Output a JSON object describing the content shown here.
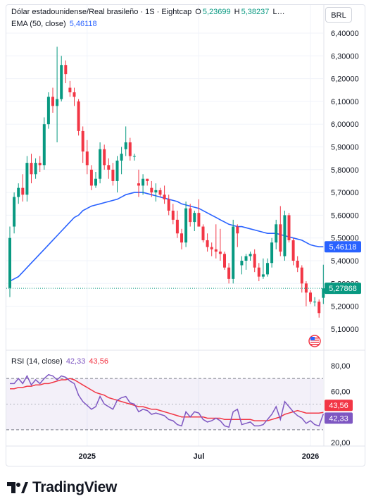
{
  "header": {
    "symbol_title": "Dólar estadounidense/Real brasileño · 1S · Eightcap",
    "open_label": "O",
    "open_value": "5,23699",
    "high_label": "H",
    "high_value": "5,38237",
    "ellipsis": "L…",
    "ema_label": "EMA (50, close)",
    "ema_value": "5,46118"
  },
  "currency_button": "BRL",
  "rsi_legend": {
    "label": "RSI (14, close)",
    "value1": "42,33",
    "value2": "43,56"
  },
  "brand": {
    "name": "TradingView"
  },
  "colors": {
    "up": "#089981",
    "down": "#f23645",
    "ema": "#2962ff",
    "rsi": "#7e57c2",
    "rsi_ma": "#f23645",
    "price_line": "#089981"
  },
  "chart_data": [
    {
      "type": "candlestick",
      "title": "Dólar estadounidense/Real brasileño · 1S · Eightcap",
      "y_ticks": [
        "5,10000",
        "5,20000",
        "5,30000",
        "5,40000",
        "5,50000",
        "5,60000",
        "5,70000",
        "5,80000",
        "5,90000",
        "6,00000",
        "6,10000",
        "6,20000",
        "6,30000",
        "6,40000"
      ],
      "ylim": [
        5.06,
        6.44
      ],
      "x_ticks": [
        {
          "label": "2025",
          "index": 18
        },
        {
          "label": "Jul",
          "index": 44
        },
        {
          "label": "2026",
          "index": 70
        }
      ],
      "last_price_label": "5,27868",
      "ema_last_label": "5,46118",
      "candles": [
        {
          "o": 5.28,
          "h": 5.55,
          "l": 5.24,
          "c": 5.5
        },
        {
          "o": 5.55,
          "h": 5.7,
          "l": 5.52,
          "c": 5.68
        },
        {
          "o": 5.68,
          "h": 5.74,
          "l": 5.65,
          "c": 5.72
        },
        {
          "o": 5.72,
          "h": 5.78,
          "l": 5.66,
          "c": 5.69
        },
        {
          "o": 5.69,
          "h": 5.86,
          "l": 5.66,
          "c": 5.83
        },
        {
          "o": 5.83,
          "h": 5.87,
          "l": 5.74,
          "c": 5.78
        },
        {
          "o": 5.78,
          "h": 5.85,
          "l": 5.76,
          "c": 5.83
        },
        {
          "o": 5.83,
          "h": 5.86,
          "l": 5.79,
          "c": 5.82
        },
        {
          "o": 5.82,
          "h": 6.03,
          "l": 5.8,
          "c": 6.0
        },
        {
          "o": 6.0,
          "h": 6.14,
          "l": 5.98,
          "c": 6.12
        },
        {
          "o": 6.12,
          "h": 6.16,
          "l": 6.05,
          "c": 6.08
        },
        {
          "o": 6.08,
          "h": 6.34,
          "l": 5.92,
          "c": 6.11
        },
        {
          "o": 6.11,
          "h": 6.3,
          "l": 6.1,
          "c": 6.26
        },
        {
          "o": 6.26,
          "h": 6.28,
          "l": 6.18,
          "c": 6.22
        },
        {
          "o": 6.16,
          "h": 6.19,
          "l": 6.12,
          "c": 6.14
        },
        {
          "o": 6.14,
          "h": 6.16,
          "l": 6.08,
          "c": 6.12
        },
        {
          "o": 6.1,
          "h": 6.11,
          "l": 5.95,
          "c": 5.97
        },
        {
          "o": 5.97,
          "h": 5.99,
          "l": 5.83,
          "c": 5.88
        },
        {
          "o": 5.88,
          "h": 5.93,
          "l": 5.78,
          "c": 5.82
        },
        {
          "o": 5.8,
          "h": 5.82,
          "l": 5.71,
          "c": 5.73
        },
        {
          "o": 5.73,
          "h": 5.79,
          "l": 5.72,
          "c": 5.76
        },
        {
          "o": 5.76,
          "h": 5.92,
          "l": 5.74,
          "c": 5.89
        },
        {
          "o": 5.89,
          "h": 5.91,
          "l": 5.8,
          "c": 5.82
        },
        {
          "o": 5.82,
          "h": 5.85,
          "l": 5.76,
          "c": 5.8
        },
        {
          "o": 5.8,
          "h": 5.83,
          "l": 5.73,
          "c": 5.75
        },
        {
          "o": 5.75,
          "h": 5.86,
          "l": 5.7,
          "c": 5.84
        },
        {
          "o": 5.84,
          "h": 5.9,
          "l": 5.78,
          "c": 5.87
        },
        {
          "o": 5.89,
          "h": 5.99,
          "l": 5.86,
          "c": 5.92
        },
        {
          "o": 5.92,
          "h": 5.94,
          "l": 5.84,
          "c": 5.86
        },
        {
          "o": 5.86,
          "h": 5.87,
          "l": 5.84,
          "c": 5.86
        },
        {
          "o": 5.74,
          "h": 5.8,
          "l": 5.68,
          "c": 5.73
        },
        {
          "o": 5.73,
          "h": 5.78,
          "l": 5.69,
          "c": 5.76
        },
        {
          "o": 5.76,
          "h": 5.76,
          "l": 5.73,
          "c": 5.75
        },
        {
          "o": 5.72,
          "h": 5.75,
          "l": 5.68,
          "c": 5.7
        },
        {
          "o": 5.7,
          "h": 5.74,
          "l": 5.66,
          "c": 5.71
        },
        {
          "o": 5.71,
          "h": 5.72,
          "l": 5.68,
          "c": 5.69
        },
        {
          "o": 5.69,
          "h": 5.73,
          "l": 5.65,
          "c": 5.67
        },
        {
          "o": 5.67,
          "h": 5.69,
          "l": 5.6,
          "c": 5.62
        },
        {
          "o": 5.62,
          "h": 5.65,
          "l": 5.56,
          "c": 5.58
        },
        {
          "o": 5.58,
          "h": 5.62,
          "l": 5.5,
          "c": 5.52
        },
        {
          "o": 5.52,
          "h": 5.54,
          "l": 5.45,
          "c": 5.48
        },
        {
          "o": 5.48,
          "h": 5.66,
          "l": 5.46,
          "c": 5.63
        },
        {
          "o": 5.63,
          "h": 5.65,
          "l": 5.55,
          "c": 5.57
        },
        {
          "o": 5.57,
          "h": 5.62,
          "l": 5.53,
          "c": 5.61
        },
        {
          "o": 5.61,
          "h": 5.67,
          "l": 5.55,
          "c": 5.55
        },
        {
          "o": 5.55,
          "h": 5.56,
          "l": 5.48,
          "c": 5.49
        },
        {
          "o": 5.49,
          "h": 5.52,
          "l": 5.44,
          "c": 5.46
        },
        {
          "o": 5.46,
          "h": 5.48,
          "l": 5.42,
          "c": 5.45
        },
        {
          "o": 5.45,
          "h": 5.56,
          "l": 5.41,
          "c": 5.44
        },
        {
          "o": 5.44,
          "h": 5.54,
          "l": 5.4,
          "c": 5.43
        },
        {
          "o": 5.43,
          "h": 5.44,
          "l": 5.36,
          "c": 5.37
        },
        {
          "o": 5.37,
          "h": 5.39,
          "l": 5.3,
          "c": 5.32
        },
        {
          "o": 5.32,
          "h": 5.58,
          "l": 5.3,
          "c": 5.55
        },
        {
          "o": 5.55,
          "h": 5.56,
          "l": 5.46,
          "c": 5.52
        },
        {
          "o": 5.38,
          "h": 5.42,
          "l": 5.34,
          "c": 5.4
        },
        {
          "o": 5.4,
          "h": 5.43,
          "l": 5.36,
          "c": 5.42
        },
        {
          "o": 5.42,
          "h": 5.44,
          "l": 5.4,
          "c": 5.43
        },
        {
          "o": 5.43,
          "h": 5.45,
          "l": 5.35,
          "c": 5.37
        },
        {
          "o": 5.37,
          "h": 5.39,
          "l": 5.31,
          "c": 5.33
        },
        {
          "o": 5.33,
          "h": 5.41,
          "l": 5.32,
          "c": 5.34
        },
        {
          "o": 5.34,
          "h": 5.41,
          "l": 5.33,
          "c": 5.39
        },
        {
          "o": 5.39,
          "h": 5.5,
          "l": 5.37,
          "c": 5.48
        },
        {
          "o": 5.48,
          "h": 5.58,
          "l": 5.45,
          "c": 5.56
        },
        {
          "o": 5.56,
          "h": 5.64,
          "l": 5.42,
          "c": 5.44
        },
        {
          "o": 5.42,
          "h": 5.62,
          "l": 5.4,
          "c": 5.6
        },
        {
          "o": 5.6,
          "h": 5.61,
          "l": 5.48,
          "c": 5.49
        },
        {
          "o": 5.49,
          "h": 5.5,
          "l": 5.38,
          "c": 5.4
        },
        {
          "o": 5.4,
          "h": 5.42,
          "l": 5.35,
          "c": 5.37
        },
        {
          "o": 5.37,
          "h": 5.38,
          "l": 5.26,
          "c": 5.3
        },
        {
          "o": 5.3,
          "h": 5.31,
          "l": 5.2,
          "c": 5.26
        },
        {
          "o": 5.26,
          "h": 5.27,
          "l": 5.21,
          "c": 5.22
        },
        {
          "o": 5.22,
          "h": 5.24,
          "l": 5.2,
          "c": 5.22
        },
        {
          "o": 5.22,
          "h": 5.23,
          "l": 5.15,
          "c": 5.17
        },
        {
          "o": 5.23699,
          "h": 5.38237,
          "l": 5.21,
          "c": 5.27868
        }
      ],
      "ema": [
        5.31,
        5.32,
        5.33,
        5.35,
        5.37,
        5.39,
        5.41,
        5.43,
        5.45,
        5.47,
        5.49,
        5.51,
        5.53,
        5.55,
        5.57,
        5.59,
        5.6,
        5.62,
        5.63,
        5.64,
        5.645,
        5.65,
        5.655,
        5.66,
        5.665,
        5.67,
        5.68,
        5.69,
        5.695,
        5.7,
        5.7,
        5.7,
        5.695,
        5.69,
        5.685,
        5.68,
        5.675,
        5.67,
        5.665,
        5.66,
        5.65,
        5.645,
        5.64,
        5.635,
        5.63,
        5.62,
        5.61,
        5.6,
        5.59,
        5.58,
        5.57,
        5.56,
        5.555,
        5.55,
        5.55,
        5.545,
        5.54,
        5.535,
        5.53,
        5.525,
        5.52,
        5.52,
        5.52,
        5.515,
        5.51,
        5.505,
        5.5,
        5.495,
        5.49,
        5.48,
        5.47,
        5.465,
        5.46118,
        5.46118
      ]
    },
    {
      "type": "line",
      "title": "RSI (14, close)",
      "y_ticks": [
        "20,00",
        "40,00",
        "60,00",
        "80,00"
      ],
      "ylim": [
        17,
        85
      ],
      "band": [
        30,
        70
      ],
      "rsi_last_label": "42,33",
      "ma_last_label": "43,56",
      "series": [
        {
          "name": "RSI",
          "values": [
            66,
            66,
            70,
            66,
            72,
            65,
            69,
            66,
            70,
            73,
            72,
            69,
            72,
            71,
            68,
            66,
            57,
            52,
            49,
            46,
            48,
            56,
            50,
            48,
            46,
            53,
            55,
            56,
            51,
            50,
            44,
            46,
            45,
            42,
            43,
            42,
            41,
            38,
            37,
            34,
            33,
            44,
            40,
            44,
            43,
            38,
            36,
            37,
            39,
            37,
            33,
            32,
            44,
            46,
            34,
            35,
            36,
            33,
            33,
            34,
            38,
            42,
            48,
            38,
            52,
            48,
            44,
            41,
            39,
            35,
            37,
            34,
            33,
            42.33
          ]
        },
        {
          "name": "MA",
          "values": [
            62,
            62,
            63,
            63,
            64,
            64,
            65,
            65,
            66,
            66,
            67,
            68,
            69,
            69,
            70,
            69,
            67,
            65,
            63,
            61,
            59,
            58,
            57,
            55,
            54,
            53,
            52,
            51,
            50,
            49,
            48,
            48,
            47,
            46,
            46,
            45,
            44,
            43,
            42,
            41,
            40,
            40,
            40,
            40,
            40,
            40,
            39,
            39,
            39,
            39,
            38,
            38,
            38,
            38,
            38,
            38,
            38,
            37,
            37,
            37,
            37,
            38,
            39,
            40,
            42,
            43,
            44,
            45,
            44,
            43,
            43,
            43,
            43,
            43.56
          ]
        }
      ]
    }
  ]
}
